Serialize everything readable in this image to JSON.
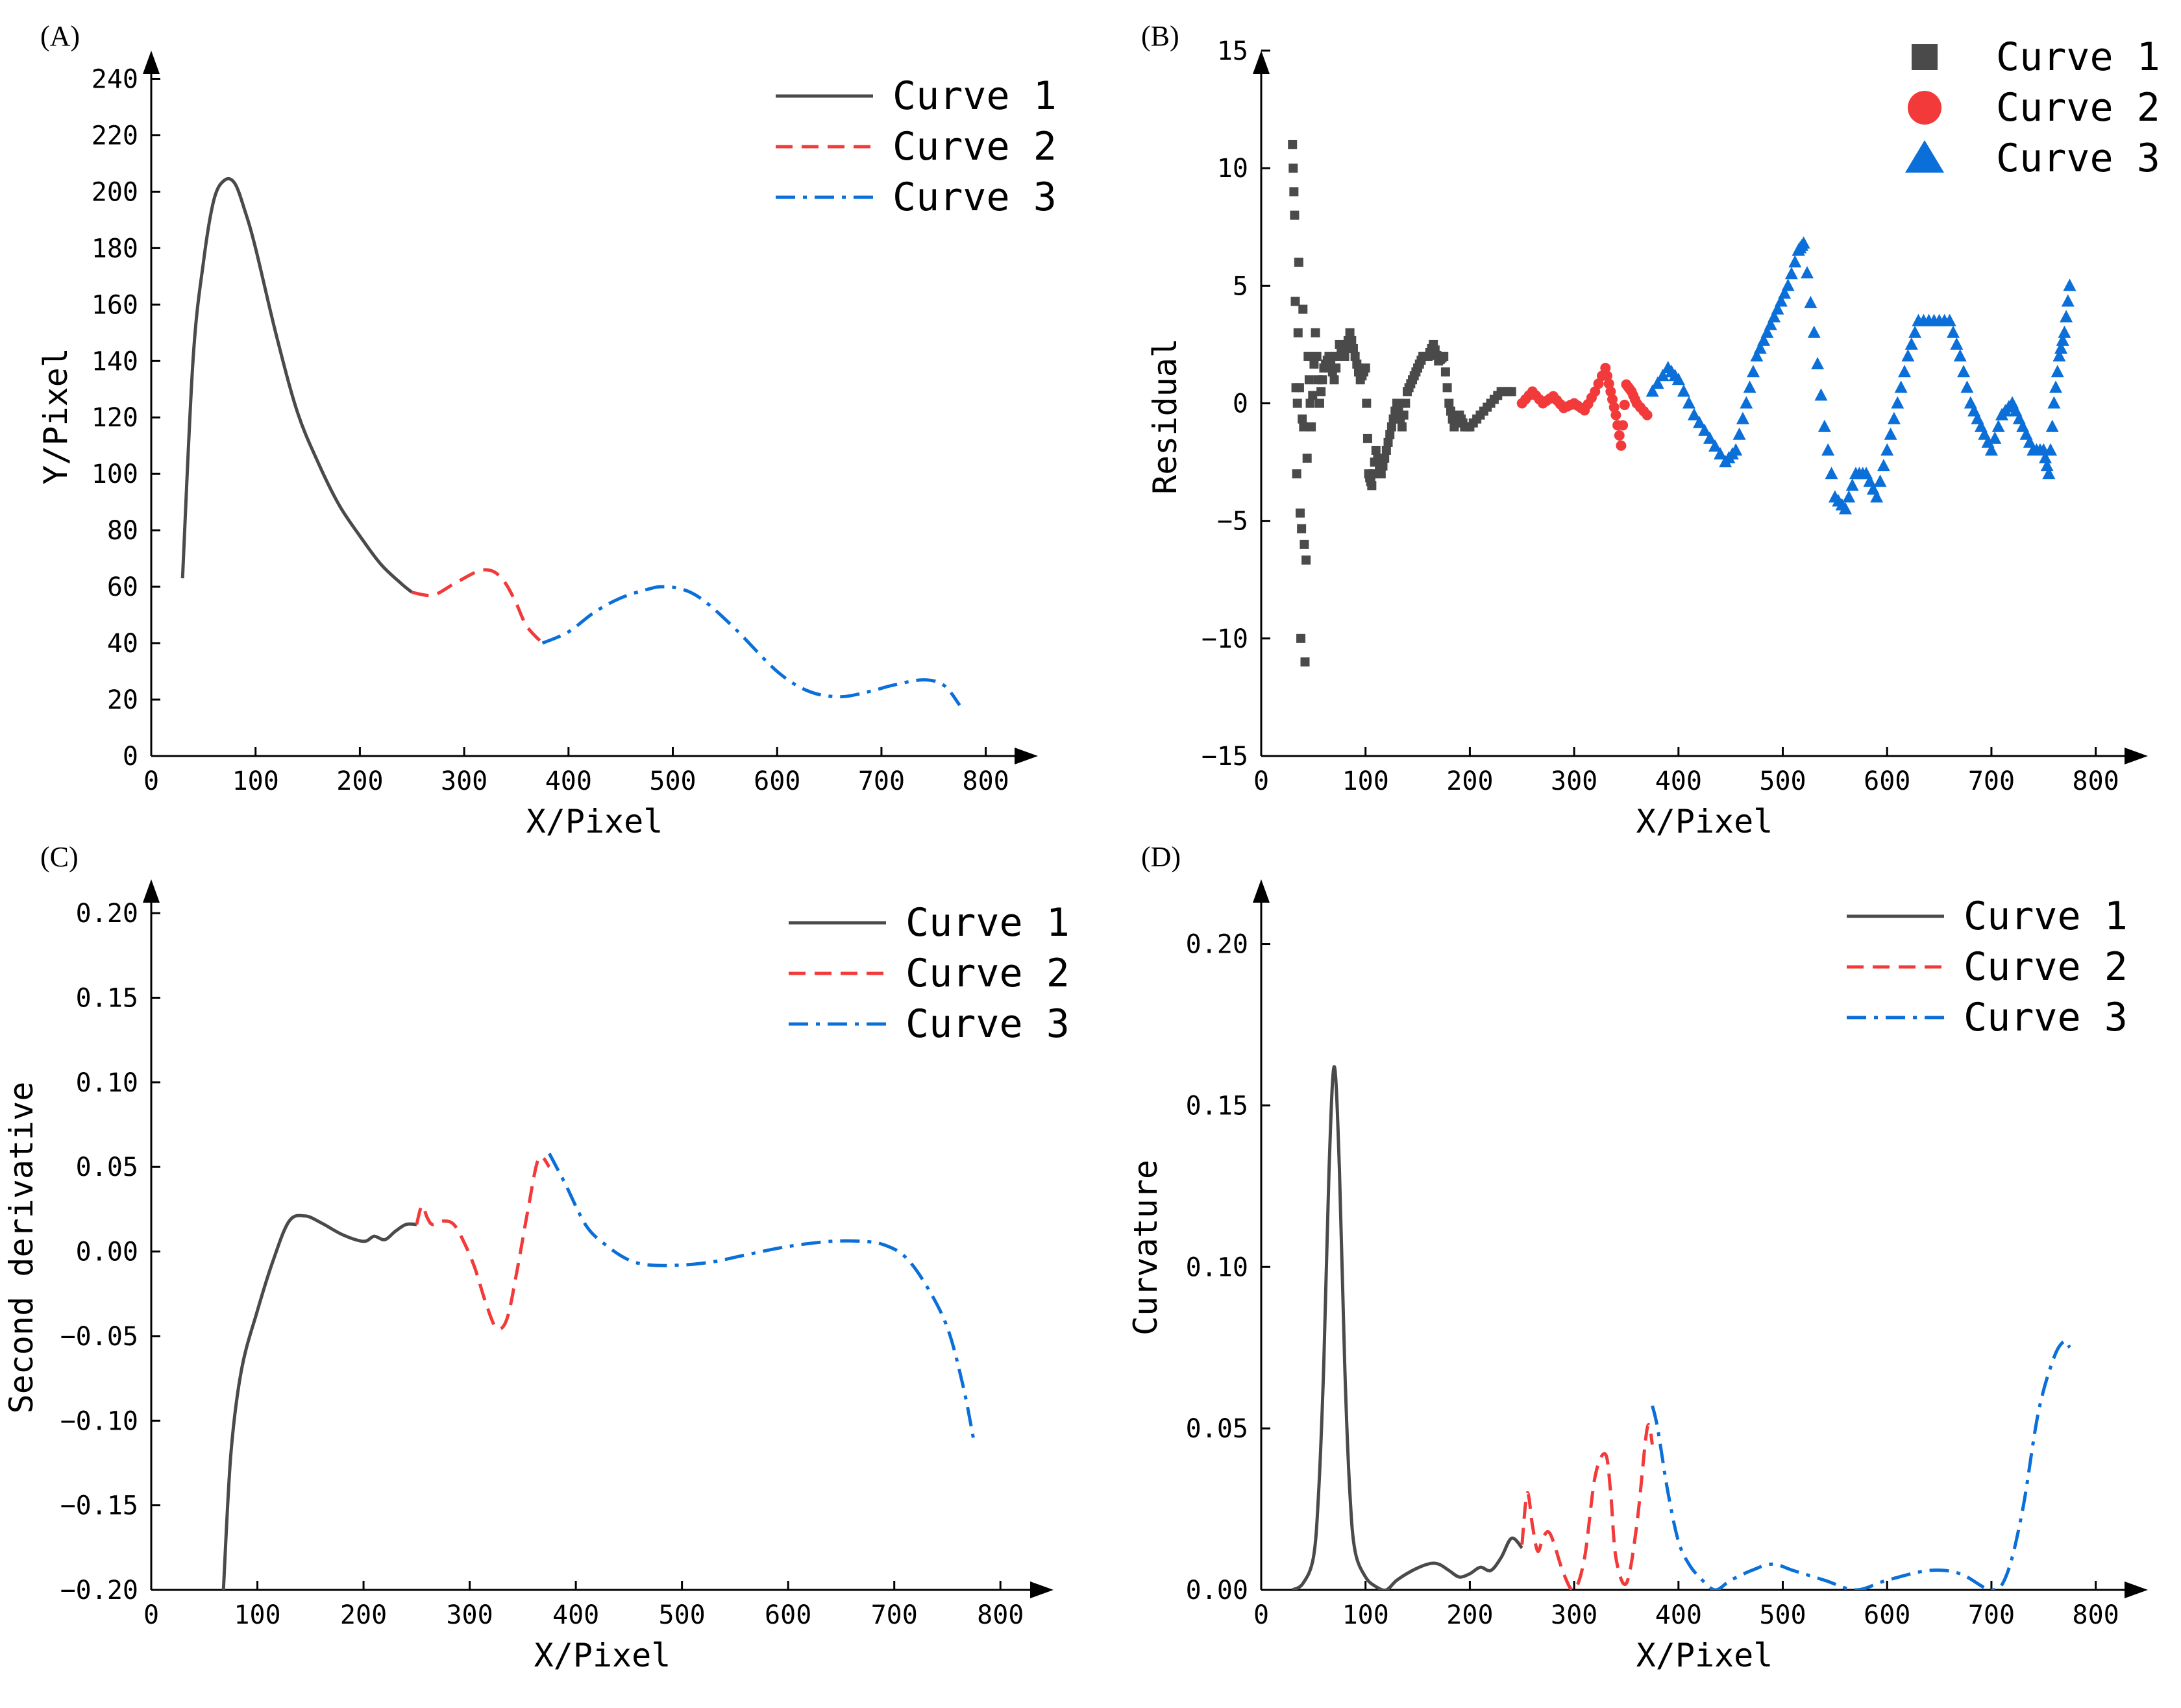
{
  "figure": {
    "colors": {
      "curve1": "#4a4a4a",
      "curve2": "#f23a3a",
      "curve3": "#0a6fd8",
      "axis": "#000000"
    }
  },
  "chart_data": [
    {
      "panel": "(A)",
      "type": "line",
      "xlabel": "X/Pixel",
      "ylabel": "Y/Pixel",
      "xlim": [
        0,
        850
      ],
      "ylim": [
        0,
        250
      ],
      "xticks": [
        0,
        100,
        200,
        300,
        400,
        500,
        600,
        700,
        800
      ],
      "yticks": [
        0,
        20,
        40,
        60,
        80,
        100,
        120,
        140,
        160,
        180,
        200,
        220,
        240
      ],
      "ytick_labels": [
        "0",
        "20",
        "40",
        "60",
        "80",
        "100",
        "120",
        "140",
        "160",
        "180",
        "200",
        "220",
        "240"
      ],
      "legend": "top-right",
      "series": [
        {
          "name": "Curve 1",
          "style": "solid",
          "color": "#4a4a4a",
          "x": [
            30,
            40,
            50,
            60,
            70,
            80,
            90,
            100,
            120,
            140,
            160,
            180,
            200,
            220,
            240,
            250
          ],
          "y": [
            63,
            140,
            175,
            197,
            204,
            203,
            193,
            180,
            149,
            122,
            104,
            89,
            78,
            68,
            61,
            58
          ]
        },
        {
          "name": "Curve 2",
          "style": "dashed",
          "color": "#f23a3a",
          "x": [
            250,
            270,
            290,
            310,
            320,
            330,
            340,
            350,
            360,
            375
          ],
          "y": [
            58,
            57,
            61,
            65,
            66,
            65,
            61,
            54,
            46,
            40
          ]
        },
        {
          "name": "Curve 3",
          "style": "dashdot",
          "color": "#0a6fd8",
          "x": [
            375,
            400,
            425,
            450,
            475,
            490,
            510,
            530,
            560,
            600,
            630,
            660,
            690,
            710,
            740,
            760,
            775
          ],
          "y": [
            40,
            44,
            51,
            56,
            59,
            60,
            59,
            55,
            45,
            30,
            23,
            21,
            23,
            25,
            27,
            25,
            18
          ]
        }
      ]
    },
    {
      "panel": "(B)",
      "type": "scatter",
      "xlabel": "X/Pixel",
      "ylabel": "Residual",
      "xlim": [
        0,
        850
      ],
      "ylim": [
        -15,
        15
      ],
      "xticks": [
        0,
        100,
        200,
        300,
        400,
        500,
        600,
        700,
        800
      ],
      "yticks": [
        -15,
        -10,
        -5,
        0,
        5,
        10,
        15
      ],
      "ytick_labels": [
        "−15",
        "−10",
        "−5",
        "0",
        "5",
        "10",
        "15"
      ],
      "legend": "top-right",
      "series": [
        {
          "name": "Curve 1",
          "marker": "square",
          "color": "#4a4a4a",
          "x": [
            30,
            32,
            34,
            36,
            38,
            40,
            42,
            45,
            48,
            52,
            56,
            60,
            65,
            70,
            75,
            80,
            85,
            90,
            95,
            100,
            103,
            106,
            110,
            115,
            120,
            125,
            130,
            135,
            140,
            145,
            150,
            155,
            160,
            165,
            170,
            175,
            180,
            185,
            190,
            195,
            200,
            210,
            220,
            230,
            240
          ],
          "y": [
            11,
            8,
            -3,
            6,
            -10,
            4,
            -11,
            2,
            -1,
            3,
            0,
            1.5,
            2,
            1,
            2.5,
            2,
            3,
            2,
            1,
            1.5,
            -3,
            -3.5,
            -2,
            -3,
            -2,
            -1,
            0,
            -1,
            0.5,
            1,
            1.5,
            2,
            2,
            2.5,
            1.8,
            2,
            0,
            -1,
            -0.5,
            -1,
            -1,
            -0.5,
            0,
            0.5,
            0.5
          ]
        },
        {
          "name": "Curve 2",
          "marker": "circle",
          "color": "#f23a3a",
          "x": [
            250,
            260,
            270,
            280,
            290,
            300,
            310,
            320,
            330,
            335,
            340,
            345,
            350,
            355,
            360,
            370
          ],
          "y": [
            0,
            0.5,
            0,
            0.3,
            -0.2,
            0,
            -0.3,
            0.5,
            1.5,
            0.5,
            -0.5,
            -1.8,
            0.8,
            0.5,
            0,
            -0.5
          ]
        },
        {
          "name": "Curve 3",
          "marker": "triangle",
          "color": "#0a6fd8",
          "x": [
            375,
            390,
            400,
            415,
            430,
            445,
            455,
            465,
            475,
            485,
            495,
            505,
            515,
            520,
            530,
            540,
            550,
            560,
            570,
            580,
            590,
            600,
            610,
            620,
            630,
            645,
            660,
            670,
            680,
            690,
            700,
            710,
            720,
            730,
            740,
            750,
            755,
            760,
            765,
            770,
            775
          ],
          "y": [
            0.5,
            1.5,
            1,
            -0.5,
            -1.5,
            -2.5,
            -2,
            0,
            2,
            3,
            4,
            5,
            6.5,
            6.8,
            3,
            -1,
            -4,
            -4.5,
            -3,
            -3,
            -4,
            -2,
            0,
            2,
            3.5,
            3.5,
            3.5,
            2,
            0,
            -1,
            -2,
            -0.5,
            0,
            -1,
            -2,
            -2,
            -3,
            0,
            2,
            3,
            5
          ]
        }
      ]
    },
    {
      "panel": "(C)",
      "type": "line",
      "xlabel": "X/Pixel",
      "ylabel": "Second derivative",
      "xlim": [
        0,
        850
      ],
      "ylim": [
        -0.2,
        0.22
      ],
      "xticks": [
        0,
        100,
        200,
        300,
        400,
        500,
        600,
        700,
        800
      ],
      "yticks": [
        -0.2,
        -0.15,
        -0.1,
        -0.05,
        0,
        0.05,
        0.1,
        0.15,
        0.2
      ],
      "ytick_labels": [
        "−0.20",
        "−0.15",
        "−0.10",
        "−0.05",
        "0.00",
        "0.05",
        "0.10",
        "0.15",
        "0.20"
      ],
      "legend": "top-right",
      "series": [
        {
          "name": "Curve 1",
          "style": "solid",
          "color": "#4a4a4a",
          "x": [
            68,
            75,
            85,
            100,
            115,
            130,
            145,
            160,
            180,
            200,
            210,
            220,
            230,
            240,
            250
          ],
          "y": [
            -0.2,
            -0.12,
            -0.07,
            -0.035,
            -0.005,
            0.018,
            0.021,
            0.017,
            0.01,
            0.006,
            0.009,
            0.007,
            0.012,
            0.016,
            0.016
          ]
        },
        {
          "name": "Curve 2",
          "style": "dashed",
          "color": "#f23a3a",
          "x": [
            250,
            255,
            260,
            265,
            275,
            285,
            295,
            305,
            315,
            325,
            335,
            345,
            355,
            365,
            375
          ],
          "y": [
            0.016,
            0.027,
            0.02,
            0.016,
            0.018,
            0.016,
            0.005,
            -0.01,
            -0.03,
            -0.045,
            -0.04,
            -0.01,
            0.025,
            0.055,
            0.05
          ]
        },
        {
          "name": "Curve 3",
          "style": "dashdot",
          "color": "#0a6fd8",
          "x": [
            375,
            390,
            410,
            430,
            450,
            470,
            500,
            530,
            560,
            600,
            640,
            670,
            690,
            710,
            730,
            750,
            765,
            775
          ],
          "y": [
            0.058,
            0.04,
            0.015,
            0.003,
            -0.005,
            -0.008,
            -0.008,
            -0.006,
            -0.002,
            0.003,
            0.006,
            0.006,
            0.004,
            -0.003,
            -0.02,
            -0.045,
            -0.08,
            -0.112
          ]
        }
      ]
    },
    {
      "panel": "(D)",
      "type": "line",
      "xlabel": "X/Pixel",
      "ylabel": "Curvature",
      "xlim": [
        0,
        850
      ],
      "ylim": [
        0,
        0.22
      ],
      "xticks": [
        0,
        100,
        200,
        300,
        400,
        500,
        600,
        700,
        800
      ],
      "yticks": [
        0,
        0.05,
        0.1,
        0.15,
        0.2
      ],
      "ytick_labels": [
        "0.00",
        "0.05",
        "0.10",
        "0.15",
        "0.20"
      ],
      "legend": "top-right",
      "series": [
        {
          "name": "Curve 1",
          "style": "solid",
          "color": "#4a4a4a",
          "x": [
            30,
            40,
            50,
            55,
            60,
            65,
            70,
            75,
            80,
            85,
            90,
            100,
            110,
            120,
            130,
            145,
            160,
            170,
            180,
            190,
            200,
            210,
            220,
            230,
            240,
            250
          ],
          "y": [
            0,
            0.002,
            0.01,
            0.03,
            0.07,
            0.13,
            0.162,
            0.13,
            0.07,
            0.03,
            0.012,
            0.004,
            0.001,
            0,
            0.003,
            0.006,
            0.008,
            0.008,
            0.006,
            0.004,
            0.005,
            0.007,
            0.006,
            0.01,
            0.016,
            0.013
          ]
        },
        {
          "name": "Curve 2",
          "style": "dashed",
          "color": "#f23a3a",
          "x": [
            250,
            255,
            260,
            265,
            270,
            275,
            280,
            290,
            300,
            310,
            320,
            330,
            335,
            340,
            350,
            360,
            370,
            375
          ],
          "y": [
            0.014,
            0.03,
            0.02,
            0.012,
            0.016,
            0.018,
            0.015,
            0.005,
            0,
            0.01,
            0.035,
            0.042,
            0.03,
            0.01,
            0.002,
            0.02,
            0.05,
            0.045
          ]
        },
        {
          "name": "Curve 3",
          "style": "dashdot",
          "color": "#0a6fd8",
          "x": [
            375,
            380,
            390,
            400,
            410,
            420,
            435,
            450,
            470,
            490,
            510,
            540,
            570,
            600,
            640,
            670,
            700,
            715,
            730,
            745,
            760,
            770,
            775
          ],
          "y": [
            0.057,
            0.05,
            0.03,
            0.015,
            0.008,
            0.004,
            0,
            0.003,
            0.006,
            0.008,
            0.006,
            0.003,
            0,
            0.003,
            0.006,
            0.005,
            0,
            0.005,
            0.025,
            0.055,
            0.072,
            0.077,
            0.075
          ]
        }
      ]
    }
  ]
}
